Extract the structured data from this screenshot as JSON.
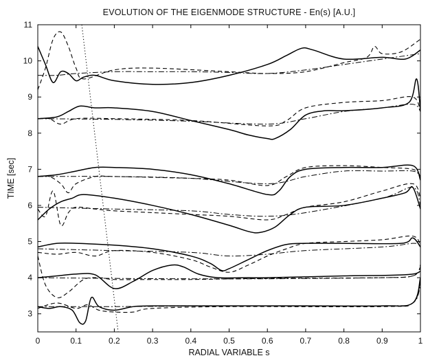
{
  "chart_data": {
    "type": "line",
    "title": "EVOLUTION OF THE EIGENMODE STRUCTURE - En(s) [A.U.]",
    "xlabel": "RADIAL VARIABLE  s",
    "ylabel": "TIME [sec]",
    "xlim": [
      0,
      1
    ],
    "ylim": [
      2.5,
      11
    ],
    "xticks": [
      "0",
      "0.1",
      "0.2",
      "0.3",
      "0.4",
      "0.5",
      "0.6",
      "0.7",
      "0.8",
      "0.9",
      "1"
    ],
    "yticks": [
      "3",
      "4",
      "5",
      "6",
      "7",
      "8",
      "9",
      "10",
      "11"
    ],
    "grid": false,
    "series": [
      {
        "style": "solid",
        "x": [
          0,
          0.03,
          0.06,
          0.09,
          0.11,
          0.125,
          0.14,
          0.16,
          0.2,
          0.25,
          0.3,
          0.5,
          0.7,
          0.9,
          0.98,
          1
        ],
        "y": [
          3.2,
          3.15,
          3.2,
          3.1,
          2.75,
          2.8,
          3.45,
          3.2,
          3.1,
          3.2,
          3.22,
          3.22,
          3.22,
          3.22,
          3.3,
          4.0
        ]
      },
      {
        "style": "dashed",
        "x": [
          0,
          0.05,
          0.1,
          0.13,
          0.16,
          0.2,
          0.25,
          0.3,
          0.5,
          0.9,
          0.98,
          1
        ],
        "y": [
          3.15,
          3.3,
          3.15,
          3.25,
          3.1,
          3.05,
          3.05,
          3.15,
          3.2,
          3.2,
          3.3,
          3.9
        ]
      },
      {
        "style": "dashdot",
        "x": [
          0,
          0.2,
          0.5,
          0.9,
          0.98,
          1
        ],
        "y": [
          3.2,
          3.2,
          3.22,
          3.22,
          3.3,
          3.8
        ]
      },
      {
        "style": "solid",
        "x": [
          0,
          0.05,
          0.1,
          0.15,
          0.2,
          0.25,
          0.3,
          0.35,
          0.38,
          0.42,
          0.47,
          0.55,
          0.6,
          0.8,
          0.98,
          1
        ],
        "y": [
          4.0,
          4.05,
          4.1,
          4.08,
          3.7,
          3.9,
          4.2,
          4.35,
          4.3,
          4.1,
          4.0,
          4.0,
          4.0,
          4.05,
          4.1,
          4.35
        ]
      },
      {
        "style": "dashed",
        "x": [
          0,
          0.02,
          0.05,
          0.08,
          0.12,
          0.16,
          0.2,
          0.3,
          0.4,
          0.6,
          0.9,
          0.98,
          1
        ],
        "y": [
          4.6,
          3.8,
          3.45,
          3.6,
          3.95,
          4.0,
          3.95,
          3.95,
          3.95,
          3.98,
          4.0,
          4.05,
          4.3
        ]
      },
      {
        "style": "dashdot",
        "x": [
          0,
          0.2,
          0.4,
          0.6,
          0.9,
          0.98,
          1
        ],
        "y": [
          4.0,
          3.98,
          3.97,
          3.97,
          4.0,
          4.05,
          4.25
        ]
      },
      {
        "style": "solid",
        "x": [
          0,
          0.05,
          0.1,
          0.2,
          0.3,
          0.4,
          0.45,
          0.48,
          0.5,
          0.55,
          0.6,
          0.65,
          0.7,
          0.8,
          0.95,
          0.98,
          1
        ],
        "y": [
          4.85,
          4.95,
          4.95,
          4.9,
          4.8,
          4.6,
          4.4,
          4.2,
          4.25,
          4.5,
          4.75,
          4.92,
          4.95,
          4.95,
          4.95,
          5.1,
          4.85
        ]
      },
      {
        "style": "dashed",
        "x": [
          0,
          0.05,
          0.1,
          0.15,
          0.2,
          0.3,
          0.4,
          0.45,
          0.5,
          0.55,
          0.6,
          0.65,
          0.7,
          0.8,
          0.9,
          0.98,
          1
        ],
        "y": [
          4.7,
          4.65,
          4.7,
          4.6,
          4.75,
          4.7,
          4.5,
          4.3,
          4.15,
          4.35,
          4.6,
          4.8,
          4.95,
          5.0,
          5.05,
          5.15,
          4.9
        ]
      },
      {
        "style": "dashdot",
        "x": [
          0,
          0.2,
          0.4,
          0.5,
          0.6,
          0.7,
          0.9,
          0.98,
          1
        ],
        "y": [
          4.8,
          4.75,
          4.7,
          4.6,
          4.65,
          4.75,
          4.85,
          4.95,
          4.9
        ]
      },
      {
        "style": "solid",
        "x": [
          0,
          0.03,
          0.06,
          0.09,
          0.12,
          0.2,
          0.3,
          0.4,
          0.5,
          0.55,
          0.58,
          0.62,
          0.66,
          0.7,
          0.8,
          0.9,
          0.96,
          0.98,
          1
        ],
        "y": [
          5.6,
          5.9,
          6.1,
          6.2,
          6.3,
          6.2,
          6.0,
          5.75,
          5.45,
          5.28,
          5.25,
          5.4,
          5.75,
          5.95,
          6.0,
          6.2,
          6.35,
          6.5,
          5.9
        ]
      },
      {
        "style": "dashed",
        "x": [
          0,
          0.02,
          0.04,
          0.06,
          0.08,
          0.1,
          0.15,
          0.2,
          0.3,
          0.4,
          0.5,
          0.6,
          0.65,
          0.7,
          0.8,
          0.9,
          0.98,
          1
        ],
        "y": [
          5.9,
          5.7,
          6.4,
          5.45,
          5.8,
          5.95,
          5.9,
          5.85,
          5.8,
          5.75,
          5.7,
          5.6,
          5.75,
          5.95,
          6.1,
          6.4,
          6.6,
          6.2
        ]
      },
      {
        "style": "dashdot",
        "x": [
          0,
          0.2,
          0.4,
          0.5,
          0.6,
          0.7,
          0.9,
          0.98,
          1
        ],
        "y": [
          5.95,
          5.9,
          5.85,
          5.75,
          5.7,
          5.8,
          6.2,
          6.5,
          6.0
        ]
      },
      {
        "style": "solid",
        "x": [
          0,
          0.05,
          0.1,
          0.15,
          0.2,
          0.3,
          0.4,
          0.5,
          0.6,
          0.63,
          0.66,
          0.7,
          0.8,
          0.9,
          0.98,
          1
        ],
        "y": [
          6.8,
          6.85,
          6.95,
          7.05,
          7.05,
          7.0,
          6.85,
          6.6,
          6.3,
          6.4,
          6.8,
          7.0,
          7.05,
          7.05,
          7.1,
          6.7
        ]
      },
      {
        "style": "dashed",
        "x": [
          0,
          0.03,
          0.06,
          0.08,
          0.1,
          0.15,
          0.2,
          0.4,
          0.5,
          0.6,
          0.65,
          0.7,
          0.8,
          0.9,
          0.98,
          1
        ],
        "y": [
          6.8,
          6.8,
          6.6,
          6.35,
          6.6,
          6.8,
          6.8,
          6.75,
          6.7,
          6.55,
          6.8,
          7.05,
          7.1,
          7.05,
          7.0,
          6.8
        ]
      },
      {
        "style": "dashdot",
        "x": [
          0,
          0.2,
          0.4,
          0.6,
          0.7,
          0.8,
          0.9,
          0.98,
          1
        ],
        "y": [
          6.8,
          6.8,
          6.75,
          6.6,
          6.8,
          6.95,
          6.95,
          6.95,
          6.8
        ]
      },
      {
        "style": "solid",
        "x": [
          0,
          0.05,
          0.08,
          0.11,
          0.15,
          0.2,
          0.3,
          0.4,
          0.5,
          0.55,
          0.6,
          0.62,
          0.66,
          0.7,
          0.75,
          0.8,
          0.9,
          0.97,
          0.99,
          1
        ],
        "y": [
          8.4,
          8.45,
          8.6,
          8.75,
          8.7,
          8.7,
          8.6,
          8.35,
          8.1,
          7.95,
          7.85,
          7.85,
          8.1,
          8.5,
          8.62,
          8.62,
          8.7,
          8.85,
          9.5,
          8.6
        ]
      },
      {
        "style": "dashed",
        "x": [
          0,
          0.03,
          0.06,
          0.1,
          0.2,
          0.4,
          0.6,
          0.65,
          0.7,
          0.8,
          0.9,
          0.98,
          1
        ],
        "y": [
          8.4,
          8.4,
          8.25,
          8.4,
          8.4,
          8.35,
          8.2,
          8.35,
          8.7,
          8.85,
          8.9,
          9.0,
          8.6
        ]
      },
      {
        "style": "dashdot",
        "x": [
          0,
          0.2,
          0.4,
          0.6,
          0.7,
          0.8,
          0.9,
          0.98,
          1
        ],
        "y": [
          8.4,
          8.38,
          8.33,
          8.25,
          8.4,
          8.6,
          8.7,
          8.8,
          8.6
        ]
      },
      {
        "style": "solid",
        "x": [
          0,
          0.02,
          0.04,
          0.06,
          0.08,
          0.1,
          0.12,
          0.15,
          0.2,
          0.3,
          0.4,
          0.5,
          0.6,
          0.65,
          0.69,
          0.72,
          0.8,
          0.9,
          0.96,
          1
        ],
        "y": [
          10.4,
          9.9,
          9.4,
          9.7,
          9.65,
          9.45,
          9.55,
          9.6,
          9.45,
          9.35,
          9.4,
          9.6,
          9.9,
          10.15,
          10.35,
          10.3,
          10.05,
          10.1,
          10.05,
          10.3
        ]
      },
      {
        "style": "dashed",
        "x": [
          0,
          0.02,
          0.04,
          0.06,
          0.08,
          0.1,
          0.12,
          0.2,
          0.3,
          0.5,
          0.6,
          0.7,
          0.8,
          0.86,
          0.88,
          0.9,
          0.95,
          1
        ],
        "y": [
          9.2,
          9.8,
          10.6,
          10.8,
          10.4,
          9.8,
          9.5,
          9.75,
          9.8,
          9.7,
          9.65,
          9.7,
          9.95,
          10.1,
          10.4,
          10.2,
          10.25,
          10.6
        ]
      },
      {
        "style": "dashdot",
        "x": [
          0,
          0.05,
          0.1,
          0.2,
          0.3,
          0.4,
          0.5,
          0.6,
          0.7,
          0.8,
          0.9,
          1
        ],
        "y": [
          9.6,
          9.6,
          9.65,
          9.7,
          9.7,
          9.7,
          9.68,
          9.65,
          9.75,
          9.9,
          10.05,
          10.2
        ]
      },
      {
        "style": "dotted",
        "x": [
          0.115,
          0.21
        ],
        "y": [
          11,
          2.5
        ]
      }
    ]
  }
}
